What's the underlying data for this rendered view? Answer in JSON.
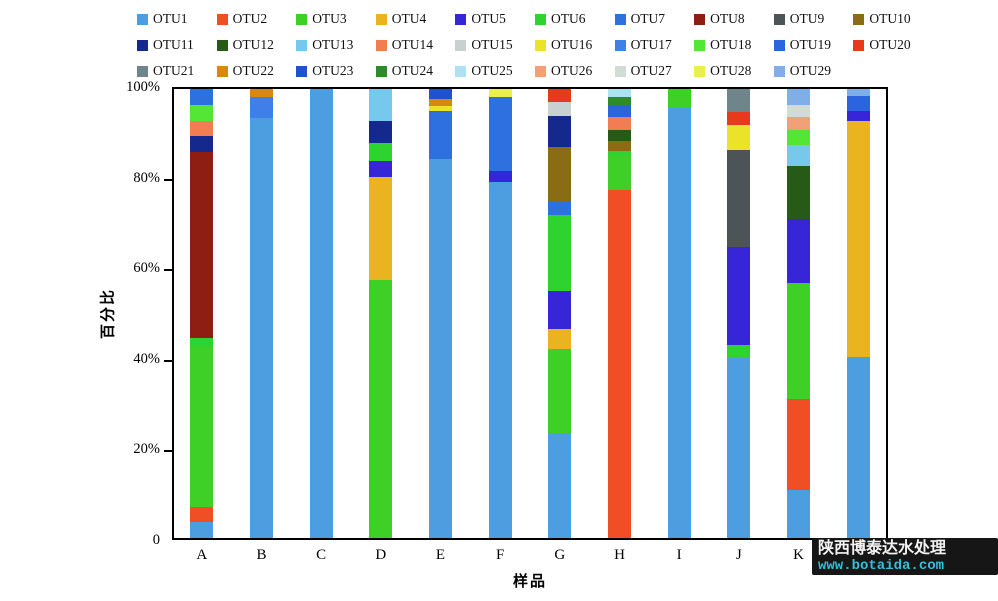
{
  "watermark": {
    "line1": "陕西博泰达水处理",
    "line2": "www.botaida.com",
    "bg_color": "#161616",
    "line2_color": "#2FC0DC"
  },
  "chart_data": {
    "type": "bar",
    "stacked": true,
    "title": "",
    "xlabel": "样品",
    "ylabel": "百分比",
    "ylim": [
      0,
      100
    ],
    "grid": false,
    "legend_position": "top",
    "legend_columns": 10,
    "yticks": [
      {
        "value": 0,
        "label": "0"
      },
      {
        "value": 20,
        "label": "20%"
      },
      {
        "value": 40,
        "label": "40%"
      },
      {
        "value": 60,
        "label": "60%"
      },
      {
        "value": 80,
        "label": "80%"
      },
      {
        "value": 100,
        "label": "100%"
      }
    ],
    "legend": [
      {
        "name": "OTU1",
        "color": "#4D9EE0"
      },
      {
        "name": "OTU2",
        "color": "#F04F26"
      },
      {
        "name": "OTU3",
        "color": "#3ED026"
      },
      {
        "name": "OTU4",
        "color": "#E9B41F"
      },
      {
        "name": "OTU5",
        "color": "#3626D8"
      },
      {
        "name": "OTU6",
        "color": "#2FD32F"
      },
      {
        "name": "OTU7",
        "color": "#2E70DE"
      },
      {
        "name": "OTU8",
        "color": "#8E1E12"
      },
      {
        "name": "OTU9",
        "color": "#4D5457"
      },
      {
        "name": "OTU10",
        "color": "#8A6C15"
      },
      {
        "name": "OTU11",
        "color": "#15298C"
      },
      {
        "name": "OTU12",
        "color": "#265A16"
      },
      {
        "name": "OTU13",
        "color": "#76C8EC"
      },
      {
        "name": "OTU14",
        "color": "#F27D52"
      },
      {
        "name": "OTU15",
        "color": "#C8D0D0"
      },
      {
        "name": "OTU16",
        "color": "#EAE32A"
      },
      {
        "name": "OTU17",
        "color": "#3E80E8"
      },
      {
        "name": "OTU18",
        "color": "#54E634"
      },
      {
        "name": "OTU19",
        "color": "#2C63DE"
      },
      {
        "name": "OTU20",
        "color": "#E73A1C"
      },
      {
        "name": "OTU21",
        "color": "#6E8689"
      },
      {
        "name": "OTU22",
        "color": "#D6890F"
      },
      {
        "name": "OTU23",
        "color": "#1E52CE"
      },
      {
        "name": "OTU24",
        "color": "#2E8B2C"
      },
      {
        "name": "OTU25",
        "color": "#ACE2F2"
      },
      {
        "name": "OTU26",
        "color": "#F2A075"
      },
      {
        "name": "OTU27",
        "color": "#D0DCD4"
      },
      {
        "name": "OTU28",
        "color": "#EBF048"
      },
      {
        "name": "OTU29",
        "color": "#7FAEE8"
      }
    ],
    "categories": [
      "A",
      "B",
      "C",
      "D",
      "E",
      "F",
      "G",
      "H",
      "I",
      "J",
      "K",
      "L"
    ],
    "bars": [
      {
        "label": "A",
        "segments": [
          [
            "OTU1",
            3.5
          ],
          [
            "OTU2",
            3.5
          ],
          [
            "OTU3",
            35.5
          ],
          [
            "OTU6",
            2.0
          ],
          [
            "OTU8",
            41.5
          ],
          [
            "OTU11",
            3.5
          ],
          [
            "OTU14",
            3.5
          ],
          [
            "OTU18",
            3.5
          ],
          [
            "OTU7",
            3.5
          ]
        ]
      },
      {
        "label": "B",
        "segments": [
          [
            "OTU1",
            93.5
          ],
          [
            "OTU17",
            4.8
          ],
          [
            "OTU22",
            1.7
          ]
        ]
      },
      {
        "label": "C",
        "segments": [
          [
            "OTU1",
            100.0
          ]
        ]
      },
      {
        "label": "D",
        "segments": [
          [
            "OTU3",
            57.5
          ],
          [
            "OTU4",
            23.0
          ],
          [
            "OTU5",
            3.5
          ],
          [
            "OTU6",
            4.0
          ],
          [
            "OTU11",
            4.8
          ],
          [
            "OTU13",
            7.2
          ]
        ]
      },
      {
        "label": "E",
        "segments": [
          [
            "OTU1",
            84.5
          ],
          [
            "OTU7",
            10.5
          ],
          [
            "OTU16",
            1.2
          ],
          [
            "OTU22",
            1.5
          ],
          [
            "OTU23",
            2.3
          ]
        ]
      },
      {
        "label": "F",
        "segments": [
          [
            "OTU1",
            79.2
          ],
          [
            "OTU5",
            2.6
          ],
          [
            "OTU7",
            16.5
          ],
          [
            "OTU28",
            1.7
          ]
        ]
      },
      {
        "label": "G",
        "segments": [
          [
            "OTU1",
            23.5
          ],
          [
            "OTU3",
            18.5
          ],
          [
            "OTU4",
            4.5
          ],
          [
            "OTU5",
            8.5
          ],
          [
            "OTU6",
            17.0
          ],
          [
            "OTU7",
            3.0
          ],
          [
            "OTU10",
            12.0
          ],
          [
            "OTU11",
            7.0
          ],
          [
            "OTU15",
            3.2
          ],
          [
            "OTU20",
            2.8
          ]
        ]
      },
      {
        "label": "H",
        "segments": [
          [
            "OTU2",
            77.5
          ],
          [
            "OTU3",
            7.5
          ],
          [
            "OTU6",
            1.2
          ],
          [
            "OTU10",
            2.2
          ],
          [
            "OTU12",
            2.5
          ],
          [
            "OTU14",
            2.9
          ],
          [
            "OTU19",
            2.6
          ],
          [
            "OTU24",
            1.9
          ],
          [
            "OTU25",
            1.7
          ]
        ]
      },
      {
        "label": "I",
        "segments": [
          [
            "OTU1",
            95.8
          ],
          [
            "OTU3",
            4.2
          ]
        ]
      },
      {
        "label": "J",
        "segments": [
          [
            "OTU1",
            40.4
          ],
          [
            "OTU6",
            2.6
          ],
          [
            "OTU5",
            21.9
          ],
          [
            "OTU9",
            21.6
          ],
          [
            "OTU16",
            5.5
          ],
          [
            "OTU20",
            2.9
          ],
          [
            "OTU21",
            5.1
          ]
        ]
      },
      {
        "label": "K",
        "segments": [
          [
            "OTU1",
            10.8
          ],
          [
            "OTU2",
            20.1
          ],
          [
            "OTU3",
            26.0
          ],
          [
            "OTU5",
            14.2
          ],
          [
            "OTU12",
            11.8
          ],
          [
            "OTU13",
            4.7
          ],
          [
            "OTU18",
            3.3
          ],
          [
            "OTU26",
            2.9
          ],
          [
            "OTU27",
            2.7
          ],
          [
            "OTU29",
            3.5
          ]
        ]
      },
      {
        "label": "L",
        "segments": [
          [
            "OTU1",
            40.4
          ],
          [
            "OTU4",
            52.4
          ],
          [
            "OTU5",
            2.2
          ],
          [
            "OTU19",
            3.4
          ],
          [
            "OTU29",
            1.6
          ]
        ]
      }
    ]
  }
}
